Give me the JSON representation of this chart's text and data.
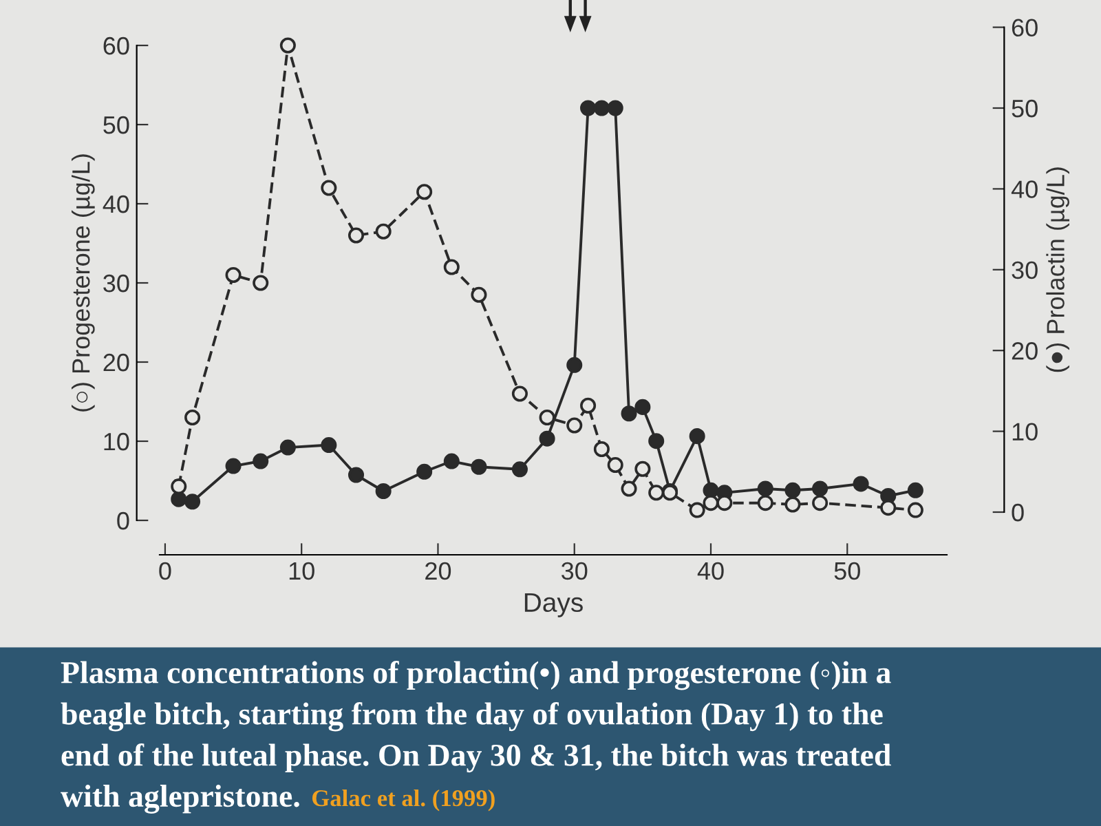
{
  "chart_data": {
    "type": "line",
    "xlabel": "Days",
    "ylabel": "(○) Progesterone (µg/L)",
    "y2label": "(●) Prolactin (µg/L)",
    "series": [
      {
        "color": "#2a2a2a",
        "line_style": "dashed",
        "x": [
          1,
          2,
          5,
          7,
          9,
          12,
          14,
          16,
          19,
          21,
          23,
          26,
          28,
          30,
          31,
          32,
          33,
          34,
          35,
          36,
          37,
          39,
          40,
          41,
          44,
          46,
          48,
          53,
          55
        ],
        "values": [
          4.3,
          13,
          31,
          30,
          60,
          42,
          36,
          36.5,
          41.5,
          32,
          28.5,
          16,
          13,
          12,
          14.5,
          9,
          7,
          4,
          6.5,
          3.5,
          3.5,
          1.3,
          2.2,
          2.2,
          2.2,
          2,
          2.2,
          1.6,
          1.3
        ]
      },
      {
        "color": "#2a2a2a",
        "line_style": "solid",
        "axis": "y2",
        "x": [
          1,
          2,
          5,
          7,
          9,
          12,
          14,
          16,
          19,
          21,
          23,
          26,
          28,
          30,
          31,
          32,
          33,
          34,
          35,
          36,
          37,
          39,
          40,
          41,
          44,
          46,
          48,
          51,
          53,
          55
        ],
        "values": [
          1.6,
          1.3,
          5.7,
          6.3,
          8,
          8.3,
          4.6,
          2.6,
          5,
          6.3,
          5.6,
          5.3,
          9.1,
          18.2,
          50,
          50,
          50,
          12.2,
          13,
          8.8,
          2.6,
          9.4,
          2.7,
          2.4,
          2.9,
          2.7,
          2.9,
          3.5,
          2,
          2.7
        ]
      }
    ],
    "xlim": [
      -0.4,
      57.3
    ],
    "xticks": [
      0,
      10,
      20,
      30,
      40,
      50
    ],
    "ylim": [
      0,
      60
    ],
    "yticks": [
      0,
      10,
      20,
      30,
      40,
      50,
      60
    ],
    "y2lim": [
      0,
      60
    ],
    "y2ticks": [
      0,
      10,
      20,
      30,
      40,
      50,
      60
    ],
    "marker": "circle",
    "grid": false,
    "legend": false,
    "annotations": [
      "Plasma concentrations of prolactin(•) and progesterone (◦)in a",
      "beagle bitch, starting from the day of ovulation (Day 1) to the",
      "end of the luteal phase. On Day 30 & 31, the bitch was treated",
      "with aglepristone.",
      "Galac et al. (1999)"
    ]
  }
}
